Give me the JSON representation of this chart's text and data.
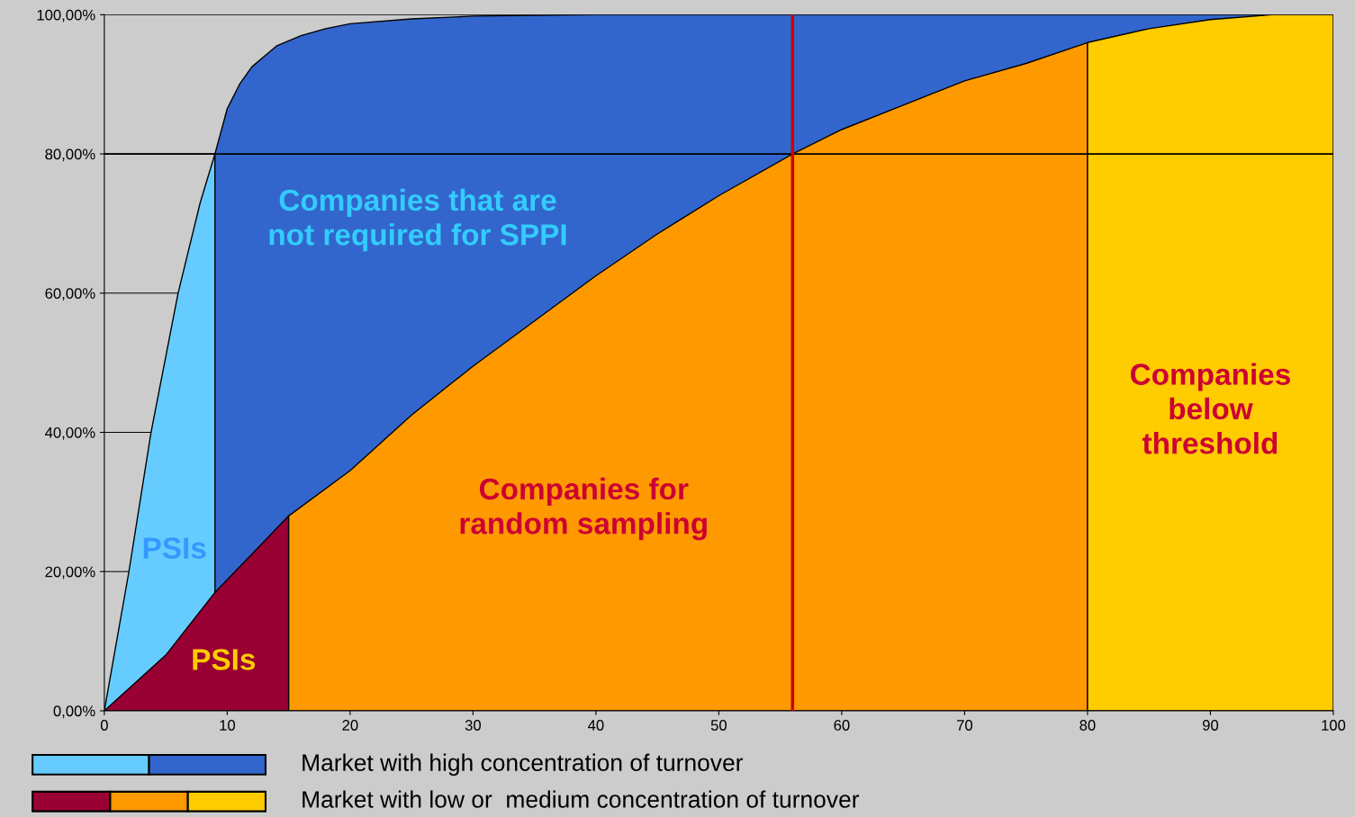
{
  "chart_data": {
    "type": "area",
    "series": [
      {
        "name": "Market with high concentration of turnover",
        "color": "#66ccff",
        "x": [
          0,
          2,
          3.8,
          6,
          7.8,
          9
        ],
        "values": [
          0,
          20,
          40,
          60,
          73,
          80
        ]
      },
      {
        "color": "#3366cc",
        "x": [
          9,
          10,
          11,
          12,
          13,
          14,
          16,
          18,
          20,
          25,
          30,
          35,
          40,
          100
        ],
        "values": [
          80,
          86.5,
          90,
          92.5,
          94,
          95.5,
          97,
          98,
          98.7,
          99.4,
          99.8,
          99.9,
          100,
          100
        ]
      },
      {
        "name": "Market with low or  medium concentration of turnover",
        "color": "#990033",
        "x": [
          0,
          5,
          9,
          12,
          15
        ],
        "values": [
          0,
          8,
          17,
          22.5,
          28
        ]
      },
      {
        "color": "#ff9900",
        "x": [
          15,
          20,
          25,
          30,
          35,
          40,
          45,
          50,
          56,
          60,
          65,
          70,
          75,
          80
        ],
        "values": [
          28,
          34.5,
          42.5,
          49.5,
          56,
          62.5,
          68.5,
          74,
          80,
          83.5,
          87,
          90.5,
          93,
          96
        ]
      },
      {
        "color": "#ffcc00",
        "x": [
          80,
          85,
          90,
          95,
          100
        ],
        "values": [
          96,
          98,
          99.3,
          100,
          100
        ]
      }
    ],
    "xlim": [
      0,
      100
    ],
    "ylim": [
      0,
      100
    ],
    "xticks": [
      0,
      10,
      20,
      30,
      40,
      50,
      60,
      70,
      80,
      90,
      100
    ],
    "yticks": [
      {
        "value": 0,
        "label": "0,00%"
      },
      {
        "value": 20,
        "label": "20,00%"
      },
      {
        "value": 40,
        "label": "40,00%"
      },
      {
        "value": 60,
        "label": "60,00%"
      },
      {
        "value": 80,
        "label": "80,00%"
      },
      {
        "value": 100,
        "label": "100,00%"
      }
    ],
    "grid": "y",
    "legend": "bottom left",
    "ref_lines": [
      {
        "axis": "y",
        "value": 80,
        "color": "#000000"
      },
      {
        "axis": "x",
        "value": 56,
        "color": "#cc0000"
      }
    ],
    "annotations": [
      "Companies that are\nnot required for SPPI",
      "PSIs",
      "PSIs",
      "Companies for\nrandom sampling",
      "Companies\nbelow\nthreshold"
    ]
  }
}
